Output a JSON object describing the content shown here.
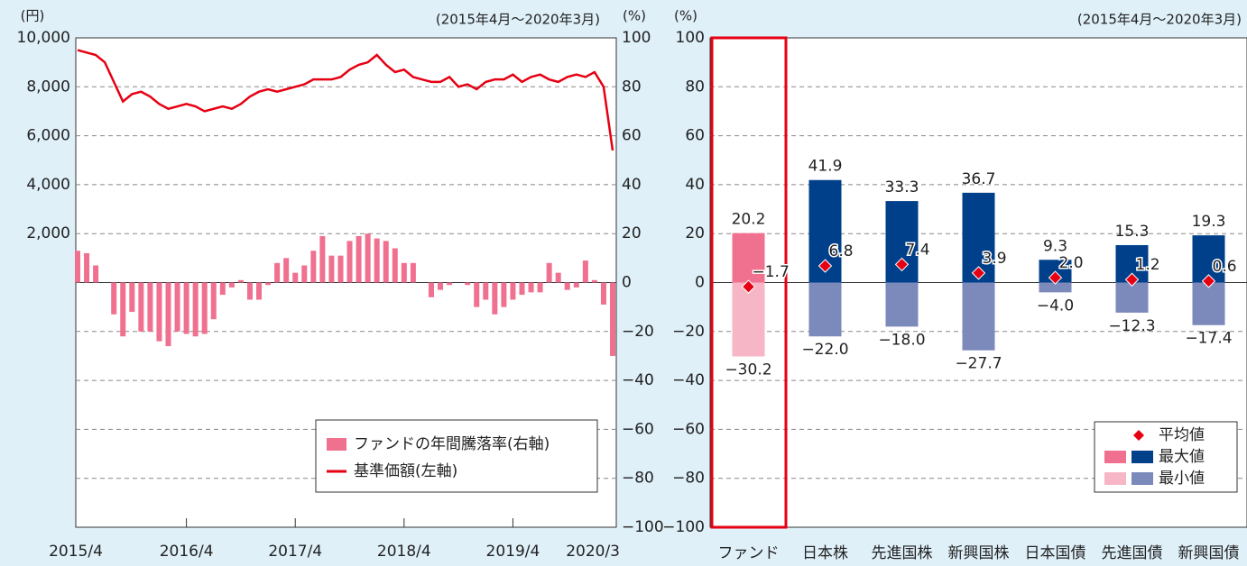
{
  "chart_data": [
    {
      "type": "combo",
      "y_label": "(円)",
      "y2_label": "(%)",
      "subtitle": "(2015年4月～2020年3月)",
      "categories": [
        "2015/4",
        null,
        null,
        null,
        null,
        null,
        null,
        null,
        null,
        null,
        null,
        null,
        "2016/4",
        null,
        null,
        null,
        null,
        null,
        null,
        null,
        null,
        null,
        null,
        null,
        "2017/4",
        null,
        null,
        null,
        null,
        null,
        null,
        null,
        null,
        null,
        null,
        null,
        "2018/4",
        null,
        null,
        null,
        null,
        null,
        null,
        null,
        null,
        null,
        null,
        null,
        "2019/4",
        null,
        null,
        null,
        null,
        null,
        null,
        null,
        null,
        null,
        null,
        "2020/3"
      ],
      "ylim": [
        -10000,
        10000
      ],
      "yticks": [
        {
          "value": 2000,
          "label": "2,000"
        },
        {
          "value": 4000,
          "label": "4,000"
        },
        {
          "value": 6000,
          "label": "6,000"
        },
        {
          "value": 8000,
          "label": "8,000"
        },
        {
          "value": 10000,
          "label": "10,000"
        }
      ],
      "y2lim": [
        -100,
        100
      ],
      "y2ticks": [
        {
          "value": -100,
          "label": "−100"
        },
        {
          "value": -80,
          "label": "−80"
        },
        {
          "value": -60,
          "label": "−60"
        },
        {
          "value": -40,
          "label": "−40"
        },
        {
          "value": -20,
          "label": "−20"
        },
        0,
        20,
        40,
        60,
        80,
        100
      ],
      "grid": true,
      "legend": "lower right",
      "series": [
        {
          "name": "ファンドの年間騰落率(右軸)",
          "type": "bar",
          "axis": "y2",
          "color": "#f07090",
          "values": [
            13,
            12,
            7,
            0,
            -13,
            -22,
            -12,
            -20,
            -20,
            -24,
            -26,
            -20,
            -21,
            -22,
            -21,
            -15,
            -5,
            -2,
            1,
            -7,
            -7,
            -1,
            8,
            10,
            4,
            7,
            13,
            19,
            11,
            11,
            17,
            19,
            20,
            18,
            17,
            14,
            8,
            8,
            0,
            -6,
            -3,
            -1,
            0,
            -1,
            -10,
            -7,
            -13,
            -10,
            -7,
            -5,
            -4,
            -4,
            8,
            4,
            -3,
            -2,
            9,
            1,
            -9,
            -30
          ]
        },
        {
          "name": "基準価額(左軸)",
          "type": "line",
          "color": "#e60012",
          "values": [
            9500,
            9400,
            9300,
            9000,
            8200,
            7400,
            7700,
            7800,
            7600,
            7300,
            7100,
            7200,
            7300,
            7200,
            7000,
            7100,
            7200,
            7100,
            7300,
            7600,
            7800,
            7900,
            7800,
            7900,
            8000,
            8100,
            8300,
            8300,
            8300,
            8400,
            8700,
            8900,
            9000,
            9300,
            8900,
            8600,
            8700,
            8400,
            8300,
            8200,
            8200,
            8400,
            8000,
            8100,
            7900,
            8200,
            8300,
            8300,
            8500,
            8200,
            8400,
            8500,
            8300,
            8200,
            8400,
            8500,
            8400,
            8600,
            8000,
            5400
          ]
        }
      ]
    },
    {
      "type": "range",
      "y_label": "(%)",
      "subtitle": "(2015年4月～2020年3月)",
      "categories": [
        "ファンド",
        "日本株",
        "先進国株",
        "新興国株",
        "日本国債",
        "先進国債",
        "新興国債"
      ],
      "ylim": [
        -100,
        100
      ],
      "yticks": [
        {
          "value": -100,
          "label": "−100"
        },
        {
          "value": -80,
          "label": "−80"
        },
        {
          "value": -60,
          "label": "−60"
        },
        {
          "value": -40,
          "label": "−40"
        },
        {
          "value": -20,
          "label": "−20"
        },
        0,
        20,
        40,
        60,
        80,
        100
      ],
      "grid": true,
      "legend": "lower right",
      "series": [
        {
          "name": "平均値",
          "type": "scatter",
          "color": "#e60012",
          "values": [
            -1.7,
            6.8,
            7.4,
            3.9,
            2.0,
            1.2,
            0.6
          ],
          "value_labels": [
            "−1.7",
            "6.8",
            "7.4",
            "3.9",
            "2.0",
            "1.2",
            "0.6"
          ]
        },
        {
          "name": "最大値",
          "type": "bar",
          "colors": [
            "#f0718f",
            "#003f8a",
            "#003f8a",
            "#003f8a",
            "#003f8a",
            "#003f8a",
            "#003f8a"
          ],
          "values": [
            20.2,
            41.9,
            33.3,
            36.7,
            9.3,
            15.3,
            19.3
          ],
          "value_labels": [
            "20.2",
            "41.9",
            "33.3",
            "36.7",
            "9.3",
            "15.3",
            "19.3"
          ]
        },
        {
          "name": "最小値",
          "type": "bar",
          "colors": [
            "#f7b6c6",
            "#7b89bb",
            "#7b89bb",
            "#7b89bb",
            "#7b89bb",
            "#7b89bb",
            "#7b89bb"
          ],
          "values": [
            -30.2,
            -22.0,
            -18.0,
            -27.7,
            -4.0,
            -12.3,
            -17.4
          ],
          "value_labels": [
            "−30.2",
            "−22.0",
            "−18.0",
            "−27.7",
            "−4.0",
            "−12.3",
            "−17.4"
          ]
        }
      ]
    }
  ]
}
